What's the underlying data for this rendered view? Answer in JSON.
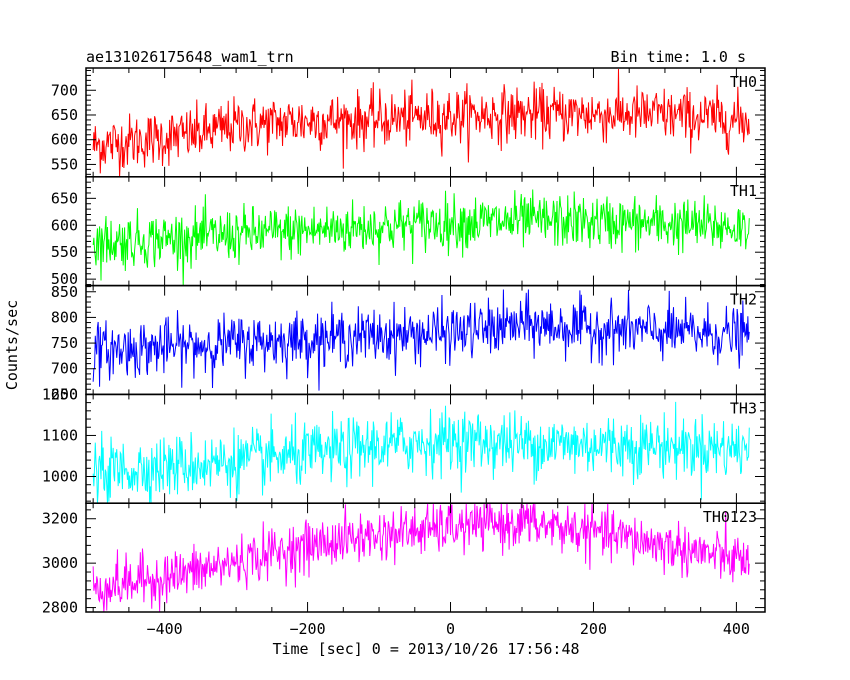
{
  "header": {
    "title": "ae131026175648_wam1_trn",
    "bin_time": "Bin time: 1.0 s"
  },
  "chart_data": {
    "type": "line",
    "xlabel": "Time [sec] 0 = 2013/10/26 17:56:48",
    "ylabel": "Counts/sec",
    "xlim": [
      -510,
      440
    ],
    "x_ticks": [
      -400,
      -200,
      0,
      200,
      400
    ],
    "x_tick_labels": [
      "−400",
      "−200",
      "0",
      "200",
      "400"
    ],
    "x_range": [
      -500,
      418
    ],
    "bin_size": 1.0,
    "panels": [
      {
        "name": "TH0",
        "color": "#ff0000",
        "ylim": [
          525,
          745
        ],
        "y_ticks": [
          550,
          600,
          650,
          700
        ],
        "trend_x": [
          -500,
          -350,
          -300,
          -200,
          -100,
          0,
          100,
          200,
          300,
          418
        ],
        "trend_y": [
          588,
          612,
          628,
          638,
          640,
          648,
          652,
          652,
          650,
          638
        ],
        "noise_sd": 28
      },
      {
        "name": "TH1",
        "color": "#00ff00",
        "ylim": [
          488,
          690
        ],
        "y_ticks": [
          500,
          550,
          600,
          650
        ],
        "trend_x": [
          -500,
          -350,
          -200,
          0,
          150,
          300,
          418
        ],
        "trend_y": [
          568,
          578,
          590,
          605,
          608,
          602,
          595
        ],
        "noise_sd": 25
      },
      {
        "name": "TH2",
        "color": "#0000ff",
        "ylim": [
          650,
          862
        ],
        "y_ticks": [
          650,
          700,
          750,
          800,
          850
        ],
        "trend_x": [
          -500,
          -400,
          -200,
          0,
          100,
          200,
          300,
          418
        ],
        "trend_y": [
          735,
          742,
          758,
          770,
          785,
          778,
          772,
          765
        ],
        "noise_sd": 27
      },
      {
        "name": "TH3",
        "color": "#00ffff",
        "ylim": [
          935,
          1200
        ],
        "y_ticks": [
          1000,
          1100,
          1200
        ],
        "trend_x": [
          -500,
          -350,
          -200,
          -100,
          0,
          100,
          200,
          300,
          418
        ],
        "trend_y": [
          1010,
          1030,
          1052,
          1075,
          1088,
          1080,
          1078,
          1075,
          1068
        ],
        "noise_sd": 38
      },
      {
        "name": "TH0123",
        "color": "#ff00ff",
        "ylim": [
          2780,
          3270
        ],
        "y_ticks": [
          2800,
          3000,
          3200
        ],
        "trend_x": [
          -500,
          -350,
          -250,
          -150,
          -50,
          50,
          100,
          200,
          300,
          418
        ],
        "trend_y": [
          2885,
          2965,
          3045,
          3105,
          3145,
          3175,
          3185,
          3140,
          3080,
          3005
        ],
        "noise_sd": 58
      }
    ]
  }
}
